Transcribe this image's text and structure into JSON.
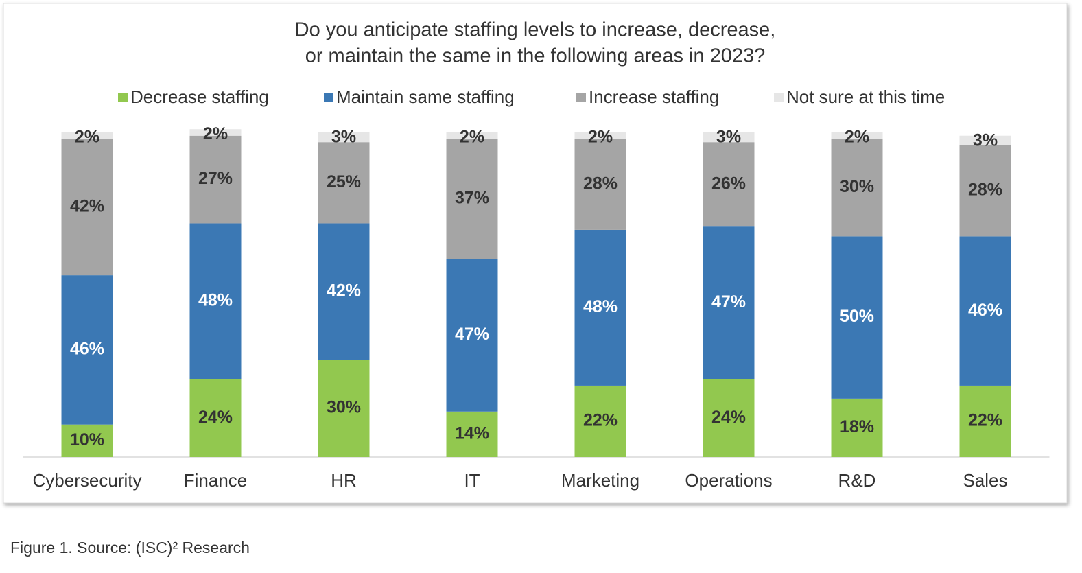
{
  "chart_data": {
    "type": "stacked_bar",
    "title": [
      "Do you anticipate staffing levels to increase, decrease,",
      "or maintain the same in the following areas in 2023?"
    ],
    "categories": [
      "Cybersecurity",
      "Finance",
      "HR",
      "IT",
      "Marketing",
      "Operations",
      "R&D",
      "Sales"
    ],
    "ylim": [
      0,
      100
    ],
    "series": [
      {
        "name": "Decrease staffing",
        "color": "#92c84f",
        "values": [
          10,
          24,
          30,
          14,
          22,
          24,
          18,
          22
        ],
        "value_labels": [
          "10%",
          "24%",
          "30%",
          "14%",
          "22%",
          "24%",
          "18%",
          "22%"
        ]
      },
      {
        "name": "Maintain same staffing",
        "color": "#3b78b4",
        "values": [
          46,
          48,
          42,
          47,
          48,
          47,
          50,
          46
        ],
        "value_labels": [
          "46%",
          "48%",
          "42%",
          "47%",
          "48%",
          "47%",
          "50%",
          "46%"
        ]
      },
      {
        "name": "Increase staffing",
        "color": "#a5a5a5",
        "values": [
          42,
          27,
          25,
          37,
          28,
          26,
          30,
          28
        ],
        "value_labels": [
          "42%",
          "27%",
          "25%",
          "37%",
          "28%",
          "26%",
          "30%",
          "28%"
        ]
      },
      {
        "name": "Not sure at this time",
        "color": "#e6e6e6",
        "values": [
          2,
          2,
          3,
          2,
          2,
          3,
          2,
          3
        ],
        "value_labels": [
          "2%",
          "2%",
          "3%",
          "2%",
          "2%",
          "3%",
          "2%",
          "3%"
        ]
      }
    ],
    "legend": "top",
    "caption": "Figure 1. Source: (ISC)² Research"
  }
}
